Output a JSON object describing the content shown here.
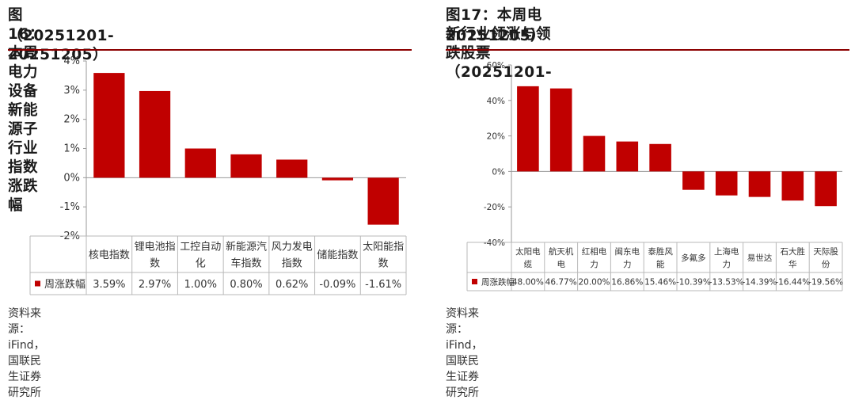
{
  "charts": [
    {
      "title_line1": "图16：本周电力设备新能源子行业指数涨跌幅",
      "title_line2": "（20251201-20251205）",
      "source": "资料来源：iFind，国联民生证券研究所",
      "chart_data": {
        "type": "bar",
        "categories": [
          [
            "核电指数"
          ],
          [
            "锂电池指",
            "数"
          ],
          [
            "工控自动",
            "化"
          ],
          [
            "新能源汽",
            "车指数"
          ],
          [
            "风力发电",
            "指数"
          ],
          [
            "储能指数"
          ],
          [
            "太阳能指",
            "数"
          ]
        ],
        "series": [
          {
            "name": "周涨跌幅",
            "values": [
              3.59,
              2.97,
              1.0,
              0.8,
              0.62,
              -0.09,
              -1.61
            ]
          }
        ],
        "table_values": [
          "3.59%",
          "2.97%",
          "1.00%",
          "0.80%",
          "0.62%",
          "-0.09%",
          "-1.61%"
        ],
        "ylim": [
          -2,
          4
        ],
        "yticks": [
          -2,
          -1,
          0,
          1,
          2,
          3,
          4
        ],
        "ytick_labels": [
          "-2%",
          "-1%",
          "0%",
          "1%",
          "2%",
          "3%",
          "4%"
        ],
        "color": "#c00000"
      }
    },
    {
      "title_line1": "图17：本周电新行业领涨与领跌股票（20251201-",
      "title_line2": "20251205）",
      "source": "资料来源：iFind，国联民生证券研究所",
      "chart_data": {
        "type": "bar",
        "categories": [
          [
            "太阳电",
            "缆"
          ],
          [
            "航天机",
            "电"
          ],
          [
            "红相电",
            "力"
          ],
          [
            "闽东电",
            "力"
          ],
          [
            "泰胜风",
            "能"
          ],
          [
            "多氟多"
          ],
          [
            "上海电",
            "力"
          ],
          [
            "易世达"
          ],
          [
            "石大胜",
            "华"
          ],
          [
            "天际股",
            "份"
          ]
        ],
        "series": [
          {
            "name": "周涨跌幅",
            "values": [
              48.0,
              46.77,
              20.0,
              16.86,
              15.46,
              -10.39,
              -13.53,
              -14.39,
              -16.44,
              -19.56
            ]
          }
        ],
        "table_values": [
          "48.00%",
          "46.77%",
          "20.00%",
          "16.86%",
          "15.46%",
          "-10.39%",
          "-13.53%",
          "-14.39%",
          "-16.44%",
          "-19.56%"
        ],
        "ylim": [
          -40,
          60
        ],
        "yticks": [
          -40,
          -20,
          0,
          20,
          40,
          60
        ],
        "ytick_labels": [
          "-40%",
          "-20%",
          "0%",
          "20%",
          "40%",
          "60%"
        ],
        "color": "#c00000"
      }
    }
  ]
}
